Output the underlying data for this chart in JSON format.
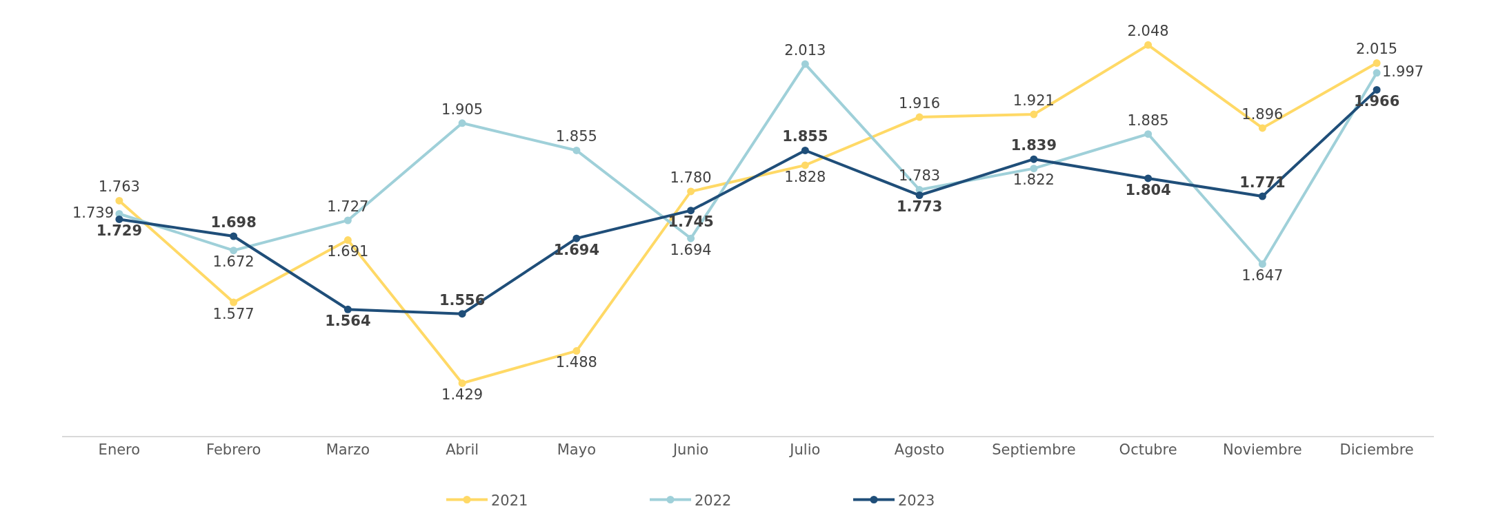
{
  "chart_data": {
    "type": "line",
    "categories": [
      "Enero",
      "Febrero",
      "Marzo",
      "Abril",
      "Mayo",
      "Junio",
      "Julio",
      "Agosto",
      "Septiembre",
      "Octubre",
      "Noviembre",
      "Diciembre"
    ],
    "series": [
      {
        "name": "2021",
        "color": "#ffd966",
        "values": [
          1763,
          1577,
          1691,
          1429,
          1488,
          1780,
          1828,
          1916,
          1921,
          2048,
          1896,
          2015
        ],
        "value_labels": [
          "1.763",
          "1.577",
          "1.691",
          "1.429",
          "1.488",
          "1.780",
          "1.828",
          "1.916",
          "1.921",
          "2.048",
          "1.896",
          "2.015"
        ]
      },
      {
        "name": "2022",
        "color": "#9fd0d9",
        "values": [
          1739,
          1672,
          1727,
          1905,
          1855,
          1694,
          2013,
          1783,
          1822,
          1885,
          1647,
          1997
        ],
        "value_labels": [
          "1.739",
          "1.672",
          "1.727",
          "1.905",
          "1.855",
          "1.694",
          "2.013",
          "1.783",
          "1.822",
          "1.885",
          "1.647",
          "1.997"
        ]
      },
      {
        "name": "2023",
        "color": "#1f4e79",
        "values": [
          1729,
          1698,
          1564,
          1556,
          1694,
          1745,
          1855,
          1773,
          1839,
          1804,
          1771,
          1966
        ],
        "value_labels": [
          "1.729",
          "1.698",
          "1.564",
          "1.556",
          "1.694",
          "1.745",
          "1.855",
          "1.773",
          "1.839",
          "1.804",
          "1.771",
          "1.966"
        ]
      }
    ],
    "legend": "bottom",
    "marker": "circle",
    "line_style": "solid"
  }
}
